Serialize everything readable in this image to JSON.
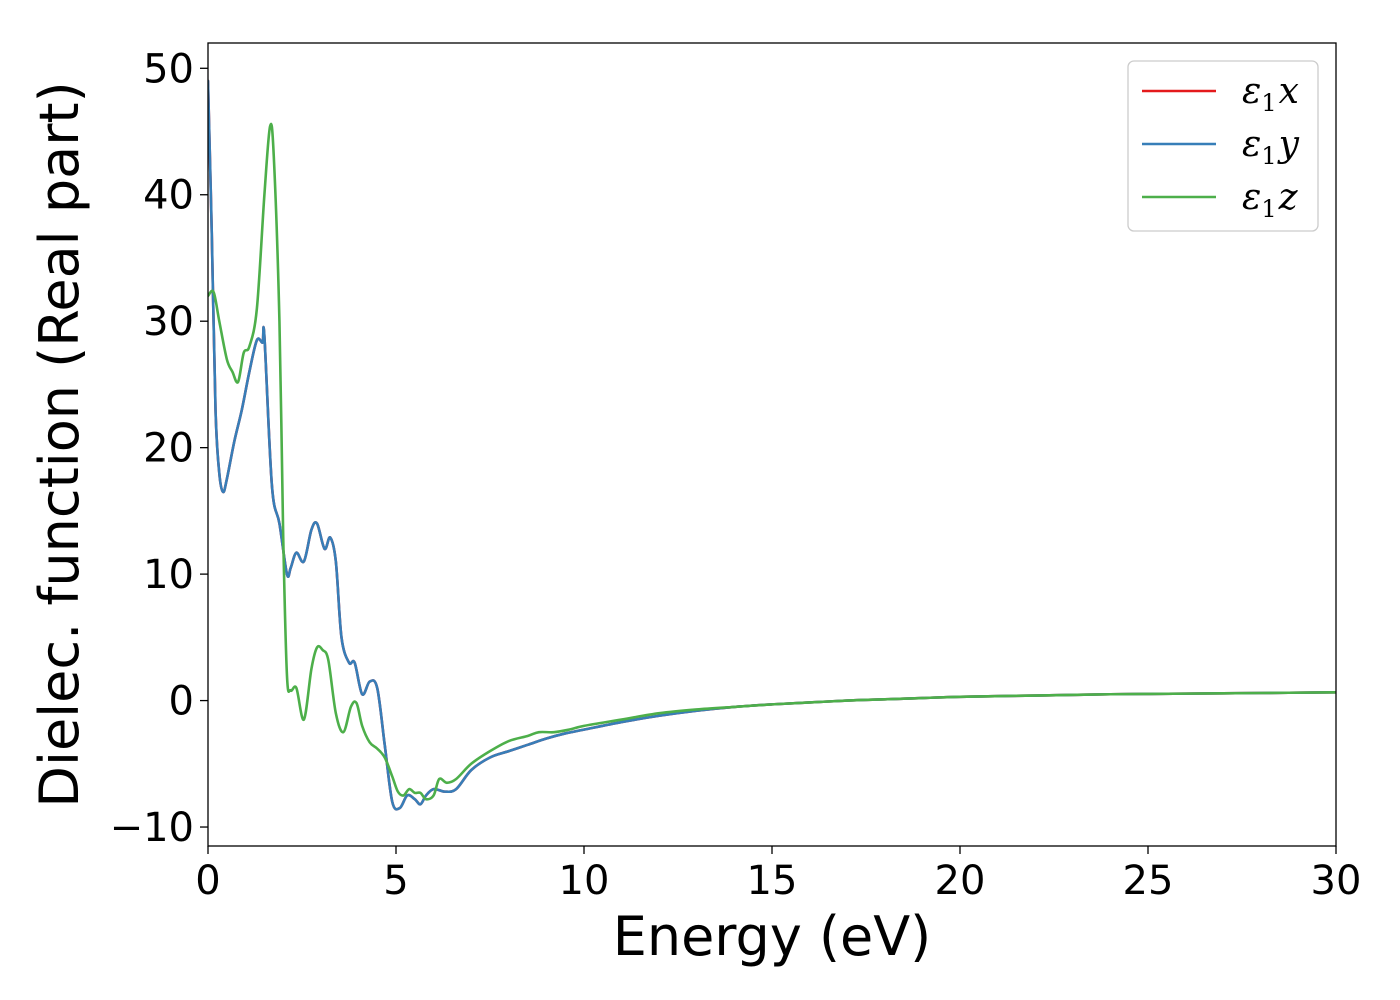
{
  "chart_data": {
    "type": "line",
    "title": "",
    "xlabel": "Energy (eV)",
    "ylabel": "Dielec. function (Real part)",
    "xlim": [
      0,
      30
    ],
    "ylim": [
      -11.5,
      52
    ],
    "xticks": [
      0,
      5,
      10,
      15,
      20,
      25,
      30
    ],
    "xtick_labels": [
      "0",
      "5",
      "10",
      "15",
      "20",
      "25",
      "30"
    ],
    "yticks": [
      -10,
      0,
      10,
      20,
      30,
      40,
      50
    ],
    "ytick_labels": [
      "−10",
      "0",
      "10",
      "20",
      "30",
      "40",
      "50"
    ],
    "grid": false,
    "legend_position": "top-right",
    "series": [
      {
        "name": "ε1x",
        "legend": {
          "symbol": "ε",
          "sub": "1",
          "axis": "x"
        },
        "color": "#e41a1c",
        "x": [
          0.0,
          0.1,
          0.2,
          0.3,
          0.4,
          0.5,
          0.7,
          0.9,
          1.1,
          1.3,
          1.45,
          1.5,
          1.7,
          1.9,
          2.1,
          2.2,
          2.35,
          2.55,
          2.75,
          2.9,
          3.1,
          3.25,
          3.4,
          3.55,
          3.75,
          3.9,
          4.1,
          4.3,
          4.5,
          4.7,
          4.9,
          5.1,
          5.3,
          5.5,
          5.65,
          5.8,
          6.0,
          6.3,
          6.6,
          7.0,
          7.5,
          8.0,
          8.5,
          9.0,
          9.5,
          10.0,
          11.0,
          12.0,
          13.0,
          14.0,
          15.0,
          16.0,
          17.0,
          18.0,
          19.0,
          20.0,
          22.0,
          24.0,
          26.0,
          28.0,
          30.0
        ],
        "values": [
          49.0,
          37.0,
          23.0,
          18.0,
          16.5,
          17.5,
          20.5,
          23.0,
          26.0,
          28.5,
          28.3,
          28.8,
          17.0,
          14.0,
          10.0,
          10.5,
          11.7,
          11.0,
          13.5,
          14.0,
          12.0,
          12.9,
          11.0,
          5.0,
          3.0,
          3.0,
          0.5,
          1.5,
          1.0,
          -3.5,
          -8.0,
          -8.5,
          -7.5,
          -7.8,
          -8.2,
          -7.5,
          -7.0,
          -7.2,
          -7.0,
          -5.5,
          -4.5,
          -4.0,
          -3.5,
          -3.0,
          -2.6,
          -2.3,
          -1.7,
          -1.2,
          -0.8,
          -0.5,
          -0.3,
          -0.15,
          0.0,
          0.1,
          0.2,
          0.3,
          0.4,
          0.5,
          0.55,
          0.6,
          0.65
        ]
      },
      {
        "name": "ε1y",
        "legend": {
          "symbol": "ε",
          "sub": "1",
          "axis": "y"
        },
        "color": "#377eb8",
        "x": [
          0.0,
          0.1,
          0.2,
          0.3,
          0.4,
          0.5,
          0.7,
          0.9,
          1.1,
          1.3,
          1.45,
          1.5,
          1.7,
          1.9,
          2.1,
          2.2,
          2.35,
          2.55,
          2.75,
          2.9,
          3.1,
          3.25,
          3.4,
          3.55,
          3.75,
          3.9,
          4.1,
          4.3,
          4.5,
          4.7,
          4.9,
          5.1,
          5.3,
          5.5,
          5.65,
          5.8,
          6.0,
          6.3,
          6.6,
          7.0,
          7.5,
          8.0,
          8.5,
          9.0,
          9.5,
          10.0,
          11.0,
          12.0,
          13.0,
          14.0,
          15.0,
          16.0,
          17.0,
          18.0,
          19.0,
          20.0,
          22.0,
          24.0,
          26.0,
          28.0,
          30.0
        ],
        "values": [
          49.0,
          37.0,
          23.0,
          18.0,
          16.5,
          17.5,
          20.5,
          23.0,
          26.0,
          28.5,
          28.3,
          28.8,
          17.0,
          14.0,
          10.0,
          10.5,
          11.7,
          11.0,
          13.5,
          14.0,
          12.0,
          12.9,
          11.0,
          5.0,
          3.0,
          3.0,
          0.5,
          1.5,
          1.0,
          -3.5,
          -8.0,
          -8.5,
          -7.5,
          -7.8,
          -8.2,
          -7.5,
          -7.0,
          -7.2,
          -7.0,
          -5.5,
          -4.5,
          -4.0,
          -3.5,
          -3.0,
          -2.6,
          -2.3,
          -1.7,
          -1.2,
          -0.8,
          -0.5,
          -0.3,
          -0.15,
          0.0,
          0.1,
          0.2,
          0.3,
          0.4,
          0.5,
          0.55,
          0.6,
          0.65
        ]
      },
      {
        "name": "ε1z",
        "legend": {
          "symbol": "ε",
          "sub": "1",
          "axis": "z"
        },
        "color": "#4daf4a",
        "x": [
          0.0,
          0.15,
          0.3,
          0.5,
          0.65,
          0.8,
          0.95,
          1.1,
          1.3,
          1.5,
          1.65,
          1.75,
          1.9,
          2.0,
          2.1,
          2.2,
          2.35,
          2.55,
          2.75,
          2.9,
          3.05,
          3.2,
          3.4,
          3.6,
          3.8,
          3.95,
          4.1,
          4.3,
          4.5,
          4.7,
          4.9,
          5.05,
          5.2,
          5.35,
          5.5,
          5.65,
          5.8,
          6.0,
          6.15,
          6.35,
          6.6,
          7.0,
          7.5,
          8.0,
          8.5,
          8.8,
          9.2,
          9.6,
          10.0,
          11.0,
          12.0,
          13.0,
          14.0,
          15.0,
          16.0,
          17.0,
          18.0,
          19.0,
          20.0,
          22.0,
          24.0,
          26.0,
          28.0,
          30.0
        ],
        "values": [
          32.0,
          32.3,
          30.0,
          27.0,
          26.0,
          25.2,
          27.5,
          28.0,
          31.0,
          40.0,
          45.4,
          43.0,
          30.0,
          13.0,
          2.0,
          0.8,
          1.0,
          -1.5,
          2.5,
          4.2,
          4.0,
          3.2,
          -1.0,
          -2.5,
          -0.5,
          -0.2,
          -2.0,
          -3.3,
          -3.8,
          -4.5,
          -6.0,
          -7.2,
          -7.5,
          -7.0,
          -7.3,
          -7.3,
          -7.8,
          -7.5,
          -6.2,
          -6.5,
          -6.2,
          -5.0,
          -4.0,
          -3.2,
          -2.8,
          -2.5,
          -2.5,
          -2.3,
          -2.0,
          -1.5,
          -1.0,
          -0.7,
          -0.5,
          -0.3,
          -0.15,
          0.0,
          0.1,
          0.2,
          0.3,
          0.4,
          0.5,
          0.55,
          0.6,
          0.65
        ]
      }
    ]
  }
}
